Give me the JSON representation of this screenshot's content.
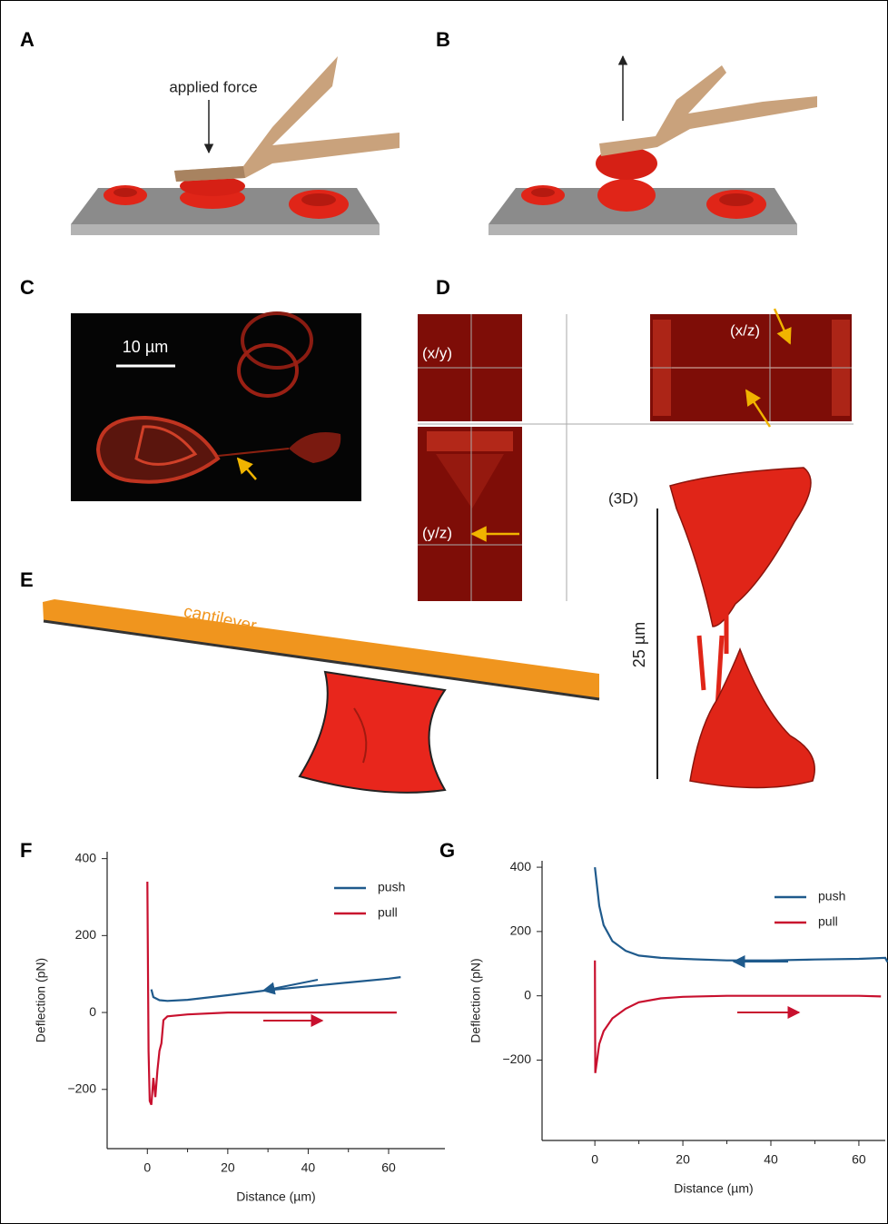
{
  "figure": {
    "panels": [
      "A",
      "B",
      "C",
      "D",
      "E",
      "F",
      "G"
    ],
    "labels": {
      "applied_force": "applied force",
      "scale_c": "10 µm",
      "xy": "(x/y)",
      "xz": "(x/z)",
      "yz": "(y/z)",
      "three_d": "(3D)",
      "scale_3d": "25 µm",
      "cantilever": "cantilever"
    }
  },
  "chart_data": [
    {
      "type": "line",
      "x_label": "Distance (µm)",
      "y_label": "Deflection (pN)",
      "xlim": [
        -10,
        74
      ],
      "xticks": [
        0,
        20,
        40,
        60
      ],
      "ylim": [
        -354,
        418
      ],
      "yticks": [
        400,
        200,
        0,
        {
          "value": -200,
          "label": "−200"
        }
      ],
      "legend": "upper right",
      "series": [
        {
          "name": "push",
          "color": "#1f5a8c",
          "x": [
            1,
            1.5,
            3,
            5,
            10,
            20,
            30,
            40,
            50,
            60,
            63
          ],
          "values": [
            60,
            40,
            32,
            30,
            33,
            45,
            58,
            68,
            78,
            88,
            92
          ]
        },
        {
          "name": "pull",
          "color": "#c8102e",
          "x": [
            0,
            0.3,
            0.6,
            1,
            1.5,
            2,
            2.5,
            3,
            3.5,
            4,
            5,
            10,
            20,
            40,
            62
          ],
          "values": [
            340,
            -100,
            -230,
            -240,
            -170,
            -220,
            -150,
            -100,
            -80,
            -20,
            -10,
            -5,
            0,
            0,
            0
          ]
        }
      ]
    },
    {
      "type": "line",
      "x_label": "Distance (µm)",
      "y_label": "Deflection (pN)",
      "xlim": [
        -12,
        66
      ],
      "xticks": [
        0,
        20,
        40,
        60
      ],
      "ylim": [
        -450,
        420
      ],
      "yticks": [
        400,
        200,
        0,
        {
          "value": -200,
          "label": "−200"
        }
      ],
      "legend": "upper right",
      "series": [
        {
          "name": "push",
          "color": "#1f5a8c",
          "x": [
            0,
            1,
            2,
            4,
            7,
            10,
            15,
            20,
            30,
            40,
            50,
            60,
            66,
            66.5
          ],
          "values": [
            400,
            280,
            220,
            170,
            140,
            125,
            118,
            115,
            110,
            110,
            113,
            115,
            118,
            105
          ]
        },
        {
          "name": "pull",
          "color": "#c8102e",
          "x": [
            0,
            0.1,
            1,
            2,
            4,
            7,
            10,
            15,
            20,
            30,
            40,
            50,
            60,
            65
          ],
          "values": [
            110,
            -240,
            -150,
            -110,
            -70,
            -40,
            -20,
            -8,
            -3,
            0,
            0,
            0,
            0,
            -2
          ]
        }
      ]
    }
  ]
}
